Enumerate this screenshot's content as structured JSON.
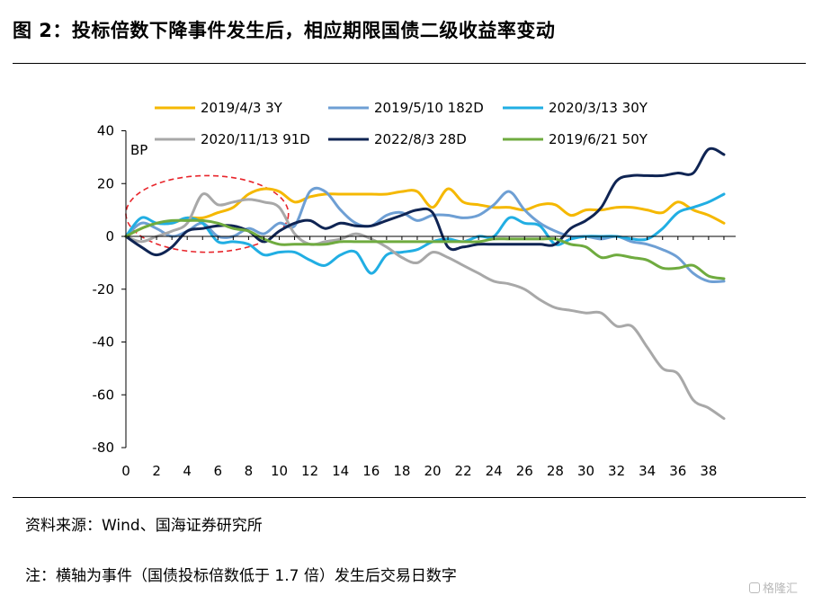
{
  "header": {
    "title": "图 2：投标倍数下降事件发生后，相应期限国债二级收益率变动"
  },
  "footer": {
    "source": "资料来源：Wind、国海证券研究所",
    "note": "注：横轴为事件（国债投标倍数低于 1.7 倍）发生后交易日数字",
    "watermark": "格隆汇"
  },
  "chart_data": {
    "type": "line",
    "ylabel": "BP",
    "ylim": [
      -80,
      40
    ],
    "xlim": [
      0,
      39
    ],
    "x_ticks": [
      0,
      2,
      4,
      6,
      8,
      10,
      12,
      14,
      16,
      18,
      20,
      22,
      24,
      26,
      28,
      30,
      32,
      34,
      36,
      38
    ],
    "y_ticks": [
      40,
      20,
      0,
      -20,
      -40,
      -60,
      -80
    ],
    "grid": false,
    "legend_position": "top",
    "annotation": {
      "shape": "dashed-ellipse",
      "color": "#e8252b",
      "x_center": 5.3,
      "y_center": 8.5,
      "x_radius": 5.3,
      "y_radius": 14.5
    },
    "x": [
      0,
      1,
      2,
      3,
      4,
      5,
      6,
      7,
      8,
      9,
      10,
      11,
      12,
      13,
      14,
      15,
      16,
      17,
      18,
      19,
      20,
      21,
      22,
      23,
      24,
      25,
      26,
      27,
      28,
      29,
      30,
      31,
      32,
      33,
      34,
      35,
      36,
      37,
      38,
      39
    ],
    "series": [
      {
        "name": "2019/4/3 3Y",
        "color": "#f5b800",
        "values": [
          0,
          3,
          5,
          5,
          7,
          7,
          9,
          11,
          16,
          18,
          17,
          13,
          15,
          16,
          16,
          16,
          16,
          16,
          17,
          17,
          11,
          18,
          13,
          12,
          11,
          11,
          10,
          12,
          12,
          8,
          10,
          10,
          11,
          11,
          10,
          9,
          13,
          10,
          8,
          5
        ]
      },
      {
        "name": "2019/5/10 182D",
        "color": "#6e9fd4",
        "values": [
          0,
          5,
          3,
          0,
          2,
          5,
          0,
          0,
          3,
          1,
          5,
          4,
          17,
          17,
          10,
          5,
          4,
          8,
          9,
          6,
          8,
          8,
          7,
          8,
          12,
          17,
          10,
          5,
          2,
          0,
          0,
          -1,
          0,
          -2,
          -3,
          -5,
          -8,
          -14,
          -17,
          -17
        ]
      },
      {
        "name": "2020/3/13 30Y",
        "color": "#21aee3",
        "values": [
          0,
          7,
          5,
          5,
          7,
          5,
          -2,
          -2,
          -3,
          -7,
          -6,
          -6,
          -9,
          -11,
          -7,
          -6,
          -14,
          -7,
          -6,
          -5,
          -2,
          -1,
          -2,
          0,
          0,
          7,
          5,
          4,
          -3,
          -1,
          0,
          0,
          0,
          -1,
          -1,
          3,
          9,
          11,
          13,
          16
        ]
      },
      {
        "name": "2020/11/13 91D",
        "color": "#a8a8a8",
        "values": [
          0,
          -2,
          0,
          2,
          5,
          16,
          12,
          13,
          14,
          13,
          11,
          1,
          -3,
          -2,
          -1,
          1,
          -1,
          -4,
          -8,
          -10,
          -6,
          -8,
          -11,
          -14,
          -17,
          -18,
          -20,
          -24,
          -27,
          -28,
          -29,
          -29,
          -34,
          -34,
          -42,
          -50,
          -52,
          -62,
          -65,
          -69
        ]
      },
      {
        "name": "2022/8/3 28D",
        "color": "#0f2453",
        "values": [
          0,
          -4,
          -7,
          -4,
          2,
          3,
          4,
          4,
          2,
          -2,
          2,
          5,
          6,
          3,
          5,
          4,
          4,
          6,
          8,
          10,
          9,
          -4,
          -4,
          -3,
          -3,
          -3,
          -3,
          -3,
          -3,
          3,
          6,
          11,
          21,
          23,
          23,
          23,
          24,
          24,
          33,
          31
        ]
      },
      {
        "name": "2019/6/21 50Y",
        "color": "#6fab3f",
        "values": [
          0,
          3,
          5,
          6,
          6,
          6,
          5,
          3,
          2,
          -1,
          -3,
          -3,
          -3,
          -3,
          -2,
          -2,
          -2,
          -2,
          -2,
          -2,
          -2,
          -2,
          -2,
          -2,
          -1,
          -1,
          -1,
          -1,
          -1,
          -3,
          -4,
          -8,
          -7,
          -8,
          -9,
          -12,
          -12,
          -11,
          -15,
          -16
        ]
      }
    ]
  }
}
